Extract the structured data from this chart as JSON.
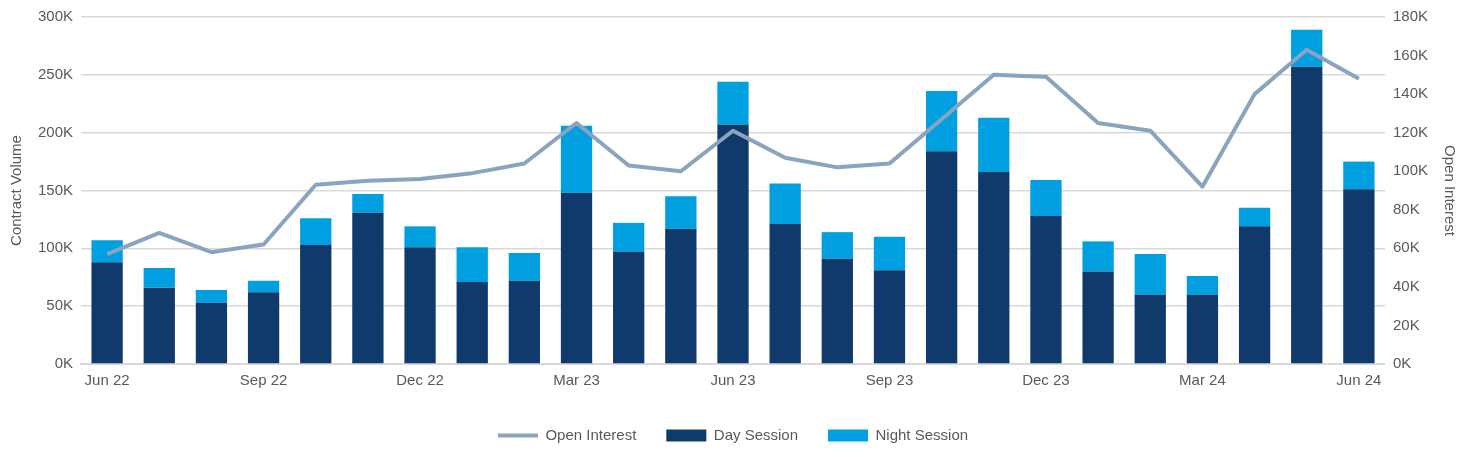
{
  "chart_data": {
    "type": "bar",
    "stacked": true,
    "ylabel": "Contract Volume",
    "y2label": "Open Interest",
    "categories": [
      "Jun 22",
      null,
      null,
      "Sep 22",
      null,
      null,
      "Dec 22",
      null,
      null,
      "Mar 23",
      null,
      null,
      "Jun 23",
      null,
      null,
      "Sep 23",
      null,
      null,
      "Dec 23",
      null,
      null,
      "Mar 24",
      null,
      null,
      "Jun 24"
    ],
    "series": [
      {
        "name": "Day Session",
        "color": "#0f3a6b",
        "values": [
          88,
          66,
          53,
          62,
          103,
          131,
          101,
          71,
          72,
          148,
          97,
          117,
          207,
          121,
          91,
          81,
          184,
          166,
          128,
          80,
          60,
          60,
          119,
          257,
          151
        ]
      },
      {
        "name": "Night Session",
        "color": "#00a0e0",
        "values": [
          19,
          17,
          11,
          10,
          23,
          16,
          18,
          30,
          24,
          58,
          25,
          28,
          37,
          35,
          23,
          29,
          52,
          47,
          31,
          26,
          35,
          16,
          16,
          32,
          24
        ]
      },
      {
        "name": "Open Interest",
        "type": "line",
        "axis": "y2",
        "color": "#8aa4bf",
        "marker": "none",
        "values": [
          57,
          68,
          58,
          62,
          93,
          95,
          96,
          99,
          104,
          125,
          103,
          100,
          121,
          107,
          102,
          104,
          127,
          150,
          149,
          125,
          121,
          92,
          140,
          163,
          148
        ]
      }
    ],
    "ylim": [
      0,
      300
    ],
    "yticks": [
      {
        "value": 0,
        "label": "0K"
      },
      {
        "value": 50,
        "label": "50K"
      },
      {
        "value": 100,
        "label": "100K"
      },
      {
        "value": 150,
        "label": "150K"
      },
      {
        "value": 200,
        "label": "200K"
      },
      {
        "value": 250,
        "label": "250K"
      },
      {
        "value": 300,
        "label": "300K"
      }
    ],
    "y2lim": [
      0,
      180
    ],
    "y2ticks": [
      {
        "value": 0,
        "label": "0K"
      },
      {
        "value": 20,
        "label": "20K"
      },
      {
        "value": 40,
        "label": "40K"
      },
      {
        "value": 60,
        "label": "60K"
      },
      {
        "value": 80,
        "label": "80K"
      },
      {
        "value": 100,
        "label": "100K"
      },
      {
        "value": 120,
        "label": "120K"
      },
      {
        "value": 140,
        "label": "140K"
      },
      {
        "value": 160,
        "label": "160K"
      },
      {
        "value": 180,
        "label": "180K"
      }
    ],
    "grid": "y",
    "legend": "bottom"
  }
}
